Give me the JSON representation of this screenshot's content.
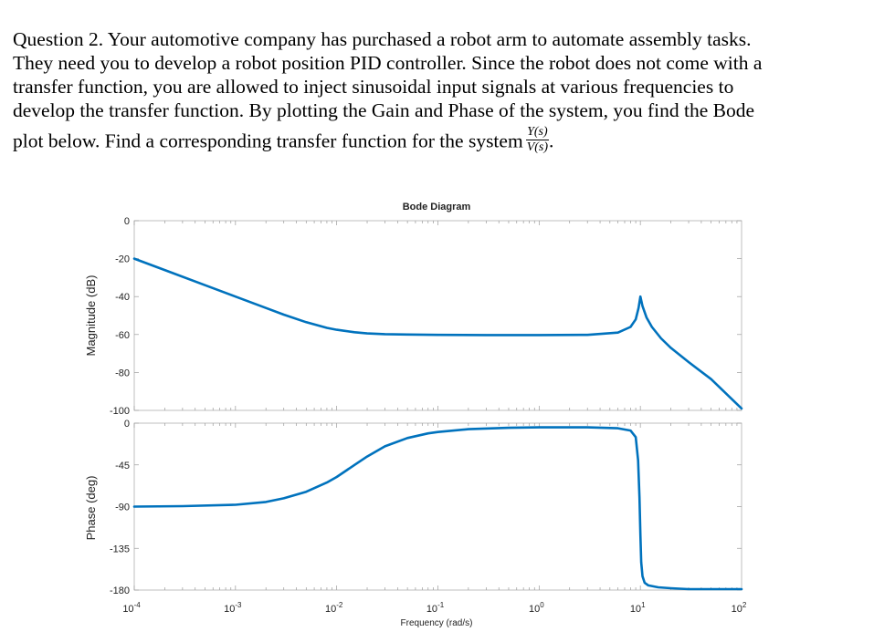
{
  "question": {
    "lines": [
      "Question 2. Your automotive company has purchased a robot arm to automate assembly tasks.",
      "They need you to develop a robot position PID controller. Since the robot does not come with a",
      "transfer function, you are allowed to inject sinusoidal input signals at various frequencies to",
      "develop the transfer function. By plotting the Gain and Phase of the system, you find the Bode"
    ],
    "last_line": "plot below. Find a corresponding transfer function for the system",
    "fraction_num": "Y(s)",
    "fraction_den": "V(s)",
    "trailing": "."
  },
  "chart_data": {
    "type": "line",
    "title": "Bode Diagram",
    "xlabel": "Frequency  (rad/s)",
    "xscale": "log",
    "xlim": [
      0.0001,
      100
    ],
    "x_tick_labels": [
      {
        "base": "10",
        "exp": "-4"
      },
      {
        "base": "10",
        "exp": "-3"
      },
      {
        "base": "10",
        "exp": "-2"
      },
      {
        "base": "10",
        "exp": "-1"
      },
      {
        "base": "10",
        "exp": "0"
      },
      {
        "base": "10",
        "exp": "1"
      },
      {
        "base": "10",
        "exp": "2"
      }
    ],
    "magnitude": {
      "ylabel": "Magnitude (dB)",
      "ylim": [
        -100,
        0
      ],
      "yticks": [
        0,
        -20,
        -40,
        -60,
        -80,
        -100
      ],
      "series": [
        {
          "name": "magnitude",
          "color": "#0072BD",
          "x": [
            0.0001,
            0.0002,
            0.0005,
            0.001,
            0.002,
            0.003,
            0.005,
            0.008,
            0.01,
            0.015,
            0.02,
            0.03,
            0.05,
            0.1,
            0.3,
            1,
            3,
            6,
            8,
            9,
            9.6,
            10,
            10.5,
            11.5,
            13,
            16,
            20,
            30,
            50,
            100
          ],
          "y": [
            -20,
            -26,
            -34,
            -40,
            -46,
            -49.5,
            -53.5,
            -56.5,
            -57.5,
            -58.8,
            -59.4,
            -59.8,
            -60,
            -60.2,
            -60.3,
            -60.3,
            -60.2,
            -59,
            -56,
            -52,
            -46,
            -40,
            -45,
            -51,
            -56,
            -62,
            -67,
            -74.5,
            -83.5,
            -99
          ]
        }
      ]
    },
    "phase": {
      "ylabel": "Phase (deg)",
      "ylim": [
        -180,
        0
      ],
      "yticks": [
        0,
        -45,
        -90,
        -135,
        -180
      ],
      "series": [
        {
          "name": "phase",
          "color": "#0072BD",
          "x": [
            0.0001,
            0.0003,
            0.001,
            0.002,
            0.003,
            0.005,
            0.008,
            0.01,
            0.015,
            0.02,
            0.03,
            0.05,
            0.08,
            0.1,
            0.2,
            0.5,
            1,
            3,
            6,
            8,
            9,
            9.5,
            9.8,
            10,
            10.2,
            10.5,
            11,
            12,
            15,
            20,
            30,
            100
          ],
          "y": [
            -90,
            -89.5,
            -88,
            -85,
            -81,
            -74,
            -64,
            -58,
            -45,
            -36,
            -25,
            -16,
            -11,
            -9.5,
            -6.5,
            -5,
            -4.5,
            -4.5,
            -5.5,
            -8,
            -15,
            -40,
            -80,
            -120,
            -150,
            -165,
            -172,
            -175,
            -177,
            -178,
            -179,
            -179
          ]
        }
      ]
    }
  }
}
